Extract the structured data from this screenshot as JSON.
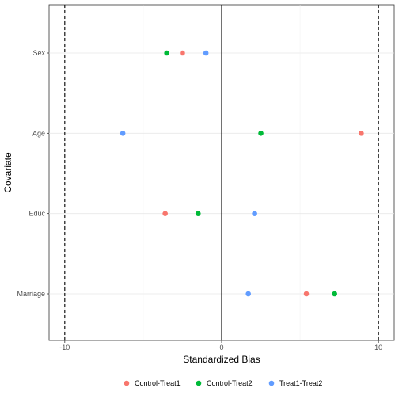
{
  "chart_data": {
    "type": "scatter",
    "title": "",
    "xlabel": "Standardized Bias",
    "ylabel": "Covariate",
    "xlim": [
      -11,
      11
    ],
    "x_ticks": [
      -10,
      0,
      10
    ],
    "x_tick_labels": [
      "-10",
      "0",
      "10"
    ],
    "categories": [
      "Sex",
      "Age",
      "Educ",
      "Marriage"
    ],
    "reference_lines": [
      {
        "x": -10,
        "style": "dashed"
      },
      {
        "x": 0,
        "style": "solid"
      },
      {
        "x": 10,
        "style": "dashed"
      }
    ],
    "grid": true,
    "legend_position": "bottom",
    "series": [
      {
        "name": "Control-Treat1",
        "color": "#F8766D",
        "values": [
          -2.5,
          8.9,
          -3.6,
          5.4
        ]
      },
      {
        "name": "Control-Treat2",
        "color": "#00BA38",
        "values": [
          -3.5,
          2.5,
          -1.5,
          7.2
        ]
      },
      {
        "name": "Treat1-Treat2",
        "color": "#619CFF",
        "values": [
          -1.0,
          -6.3,
          2.1,
          1.7
        ]
      }
    ]
  }
}
